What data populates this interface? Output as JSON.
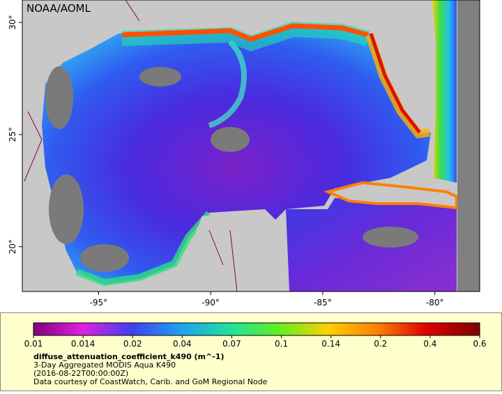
{
  "map": {
    "watermark": "NOAA/AOML",
    "lonlim": [
      -98.4,
      -78
    ],
    "latlim": [
      18,
      31
    ],
    "lon_ticks": [
      {
        "value": -95,
        "label": "-95°"
      },
      {
        "value": -90,
        "label": "-90°"
      },
      {
        "value": -85,
        "label": "-85°"
      },
      {
        "value": -80,
        "label": "-80°"
      }
    ],
    "lat_ticks": [
      {
        "value": 20,
        "label": "20°"
      },
      {
        "value": 25,
        "label": "25°"
      },
      {
        "value": 30,
        "label": "30°"
      }
    ]
  },
  "legend": {
    "ticks": [
      0.01,
      0.014,
      0.02,
      0.04,
      0.07,
      0.1,
      0.14,
      0.2,
      0.4,
      0.6
    ],
    "variable": "diffuse_attenuation_coefficient_k490 (m^-1)",
    "description": "3-Day Aggregated MODIS Aqua K490",
    "time": "(2016-08-22T00:00:00Z)",
    "credit": "Data courtesy of CoastWatch, Carib. and GoM Regional Node"
  }
}
